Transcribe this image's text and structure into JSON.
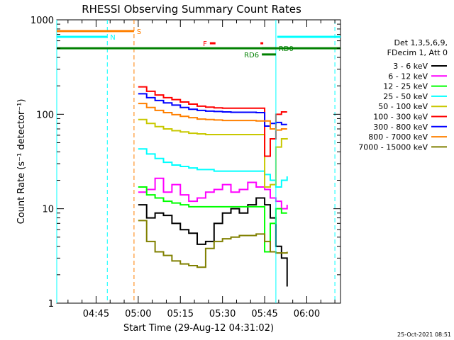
{
  "chart_data": {
    "type": "line",
    "title": "RHESSI Observing Summary Count Rates",
    "xlabel": "Start Time (29-Aug-12 04:31:02)",
    "ylabel": "Count Rate (s⁻¹ detector⁻¹)",
    "yscale": "log",
    "ylim": [
      1,
      1000
    ],
    "xlim_minutes": [
      271.0,
      372.0
    ],
    "x_ticks": [
      {
        "label": "04:45",
        "minute": 285
      },
      {
        "label": "05:00",
        "minute": 300
      },
      {
        "label": "05:15",
        "minute": 315
      },
      {
        "label": "05:30",
        "minute": 330
      },
      {
        "label": "05:45",
        "minute": 345
      },
      {
        "label": "06:00",
        "minute": 360
      }
    ],
    "y_ticks": [
      {
        "label": "1",
        "value": 1
      },
      {
        "label": "10",
        "value": 10
      },
      {
        "label": "100",
        "value": 100
      },
      {
        "label": "1000",
        "value": 1000
      }
    ],
    "legend": {
      "header": [
        "Det 1,3,5,6,9,",
        "FDecim 1, Att 0"
      ],
      "placement": "right"
    },
    "series": [
      {
        "name": "3 - 6 keV",
        "color": "#000000",
        "points": [
          [
            300,
            11
          ],
          [
            303,
            8
          ],
          [
            306,
            9
          ],
          [
            309,
            8.5
          ],
          [
            312,
            7
          ],
          [
            315,
            6
          ],
          [
            318,
            5.5
          ],
          [
            321,
            4.2
          ],
          [
            324,
            4.5
          ],
          [
            327,
            7
          ],
          [
            330,
            9
          ],
          [
            333,
            10
          ],
          [
            336,
            9
          ],
          [
            339,
            11
          ],
          [
            342,
            13
          ],
          [
            345,
            11
          ],
          [
            347,
            8
          ],
          [
            349,
            4
          ],
          [
            351,
            3
          ],
          [
            353,
            1.5
          ]
        ]
      },
      {
        "name": "6 - 12 keV",
        "color": "#ff00ff",
        "points": [
          [
            300,
            15
          ],
          [
            303,
            16
          ],
          [
            306,
            21
          ],
          [
            309,
            15
          ],
          [
            312,
            18
          ],
          [
            315,
            14
          ],
          [
            318,
            12
          ],
          [
            321,
            13
          ],
          [
            324,
            15
          ],
          [
            327,
            16
          ],
          [
            330,
            18
          ],
          [
            333,
            15
          ],
          [
            336,
            16
          ],
          [
            339,
            19
          ],
          [
            342,
            17
          ],
          [
            345,
            16
          ],
          [
            347,
            13
          ],
          [
            349,
            12
          ],
          [
            351,
            10
          ],
          [
            353,
            11
          ]
        ]
      },
      {
        "name": "12 - 25 keV",
        "color": "#00ff00",
        "points": [
          [
            300,
            17
          ],
          [
            303,
            14
          ],
          [
            306,
            13
          ],
          [
            309,
            12
          ],
          [
            312,
            11.5
          ],
          [
            315,
            11
          ],
          [
            318,
            10.5
          ],
          [
            321,
            10.5
          ],
          [
            324,
            10.5
          ],
          [
            327,
            10.5
          ],
          [
            330,
            10.5
          ],
          [
            333,
            10.5
          ],
          [
            336,
            10.5
          ],
          [
            339,
            10.5
          ],
          [
            342,
            10.5
          ],
          [
            345,
            3.5
          ],
          [
            347,
            7
          ],
          [
            349,
            10
          ],
          [
            351,
            9
          ],
          [
            353,
            9
          ]
        ]
      },
      {
        "name": "25 - 50 keV",
        "color": "#00ffff",
        "points": [
          [
            300,
            43
          ],
          [
            303,
            38
          ],
          [
            306,
            34
          ],
          [
            309,
            31
          ],
          [
            312,
            29
          ],
          [
            315,
            28
          ],
          [
            318,
            27
          ],
          [
            321,
            26
          ],
          [
            324,
            26
          ],
          [
            327,
            25
          ],
          [
            330,
            25
          ],
          [
            333,
            25
          ],
          [
            336,
            25
          ],
          [
            339,
            25
          ],
          [
            342,
            25
          ],
          [
            345,
            23
          ],
          [
            347,
            20
          ],
          [
            349,
            17
          ],
          [
            351,
            20
          ],
          [
            353,
            22
          ]
        ]
      },
      {
        "name": "50 - 100 keV",
        "color": "#c8c800",
        "points": [
          [
            300,
            88
          ],
          [
            303,
            80
          ],
          [
            306,
            74
          ],
          [
            309,
            70
          ],
          [
            312,
            67
          ],
          [
            315,
            65
          ],
          [
            318,
            63
          ],
          [
            321,
            62
          ],
          [
            324,
            61
          ],
          [
            327,
            61
          ],
          [
            330,
            61
          ],
          [
            333,
            61
          ],
          [
            336,
            61
          ],
          [
            339,
            61
          ],
          [
            342,
            61
          ],
          [
            345,
            17
          ],
          [
            347,
            18
          ],
          [
            349,
            45
          ],
          [
            351,
            55
          ],
          [
            353,
            56
          ]
        ]
      },
      {
        "name": "100 - 300 keV",
        "color": "#ff0000",
        "points": [
          [
            300,
            195
          ],
          [
            303,
            175
          ],
          [
            306,
            160
          ],
          [
            309,
            150
          ],
          [
            312,
            143
          ],
          [
            315,
            135
          ],
          [
            318,
            128
          ],
          [
            321,
            122
          ],
          [
            324,
            119
          ],
          [
            327,
            117
          ],
          [
            330,
            116
          ],
          [
            333,
            116
          ],
          [
            336,
            116
          ],
          [
            339,
            116
          ],
          [
            342,
            116
          ],
          [
            345,
            36
          ],
          [
            347,
            55
          ],
          [
            349,
            100
          ],
          [
            351,
            106
          ],
          [
            353,
            106
          ]
        ]
      },
      {
        "name": "300 - 800 keV",
        "color": "#0000ff",
        "points": [
          [
            300,
            165
          ],
          [
            303,
            150
          ],
          [
            306,
            140
          ],
          [
            309,
            132
          ],
          [
            312,
            125
          ],
          [
            315,
            118
          ],
          [
            318,
            113
          ],
          [
            321,
            110
          ],
          [
            324,
            108
          ],
          [
            327,
            107
          ],
          [
            330,
            106
          ],
          [
            333,
            105
          ],
          [
            336,
            105
          ],
          [
            339,
            105
          ],
          [
            342,
            104
          ],
          [
            345,
            75
          ],
          [
            347,
            80
          ],
          [
            349,
            82
          ],
          [
            351,
            78
          ],
          [
            353,
            78
          ]
        ]
      },
      {
        "name": "800 - 7000 keV",
        "color": "#ff8000",
        "points": [
          [
            300,
            130
          ],
          [
            303,
            118
          ],
          [
            306,
            110
          ],
          [
            309,
            104
          ],
          [
            312,
            99
          ],
          [
            315,
            95
          ],
          [
            318,
            92
          ],
          [
            321,
            89
          ],
          [
            324,
            88
          ],
          [
            327,
            87
          ],
          [
            330,
            86
          ],
          [
            333,
            86
          ],
          [
            336,
            86
          ],
          [
            339,
            86
          ],
          [
            342,
            85
          ],
          [
            345,
            85
          ],
          [
            347,
            70
          ],
          [
            349,
            68
          ],
          [
            351,
            70
          ],
          [
            353,
            70
          ]
        ]
      },
      {
        "name": "7000 - 15000 keV",
        "color": "#808000",
        "points": [
          [
            300,
            7.5
          ],
          [
            303,
            4.5
          ],
          [
            306,
            3.5
          ],
          [
            309,
            3.2
          ],
          [
            312,
            2.8
          ],
          [
            315,
            2.6
          ],
          [
            318,
            2.5
          ],
          [
            321,
            2.4
          ],
          [
            324,
            3.8
          ],
          [
            327,
            4.5
          ],
          [
            330,
            4.8
          ],
          [
            333,
            5
          ],
          [
            336,
            5.2
          ],
          [
            339,
            5.2
          ],
          [
            342,
            5.4
          ],
          [
            345,
            4.5
          ],
          [
            347,
            3.5
          ],
          [
            349,
            3.4
          ],
          [
            351,
            3.4
          ],
          [
            353,
            3.5
          ]
        ]
      }
    ],
    "flags": [
      {
        "label": "S",
        "color": "#ff8000",
        "start": 271.0,
        "end": 298.5,
        "value": 760
      },
      {
        "label": "N",
        "color": "#00ffff",
        "start": 271.0,
        "end": 289.0,
        "value": 660
      },
      {
        "label": "",
        "color": "#00ffff",
        "start": 349.5,
        "end": 372.0,
        "value": 660
      },
      {
        "label": "",
        "color": "#008000",
        "start": 271.0,
        "end": 372.0,
        "value": 500
      },
      {
        "label": "F",
        "color": "#ff0000",
        "start": 325.5,
        "end": 327.5,
        "value": 565
      },
      {
        "label": "",
        "color": "#ff0000",
        "start": 343.5,
        "end": 344.5,
        "value": 565
      },
      {
        "label": "RD0",
        "color": "#008000",
        "start": 344.0,
        "end": 349.0,
        "value": 500
      },
      {
        "label": "RD6",
        "color": "#008000",
        "start": 344.0,
        "end": 349.0,
        "value": 430
      }
    ],
    "vertical_markers": [
      {
        "color": "#00ffff",
        "minute": 271.0,
        "style": "solid"
      },
      {
        "color": "#00ffff",
        "minute": 289.0,
        "style": "dashed"
      },
      {
        "color": "#ff8000",
        "minute": 298.5,
        "style": "dashed"
      },
      {
        "color": "#00ffff",
        "minute": 349.0,
        "style": "solid"
      },
      {
        "color": "#00ffff",
        "minute": 370.0,
        "style": "dashed"
      }
    ],
    "grid": false,
    "footer": "25-Oct-2021 08:51"
  }
}
